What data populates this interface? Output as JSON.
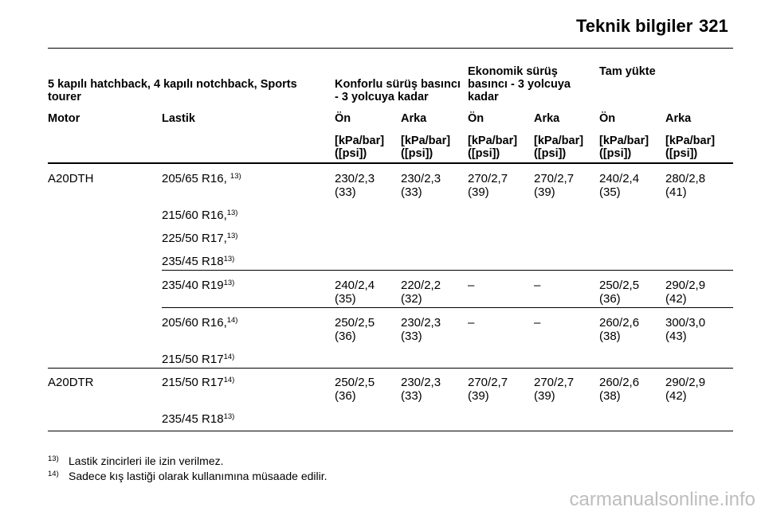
{
  "header": {
    "title": "Teknik bilgiler",
    "page_number": "321"
  },
  "table": {
    "group_header": "5 kapılı hatchback, 4 kapılı notchback, Sports tourer",
    "pressure_groups": [
      "Konforlu sürüş basıncı - 3 yolcuya kadar",
      "Ekonomik sürüş basıncı - 3 yolcuya kadar",
      "Tam yükte"
    ],
    "columns": [
      "Motor",
      "Lastik",
      "Ön",
      "Arka",
      "Ön",
      "Arka",
      "Ön",
      "Arka"
    ],
    "unit": "[kPa/bar] ([psi])",
    "rows": [
      {
        "engine": "A20DTH",
        "tires": [
          "205/65 R16,",
          "215/60 R16,",
          "225/50 R17,",
          "235/45 R18"
        ],
        "tire_notes": [
          "13)",
          "13)",
          "13)",
          "13)"
        ],
        "values": [
          "230/2,3 (33)",
          "230/2,3 (33)",
          "270/2,7 (39)",
          "270/2,7 (39)",
          "240/2,4 (35)",
          "280/2,8 (41)"
        ]
      },
      {
        "engine": "",
        "tires": [
          "235/40 R19"
        ],
        "tire_notes": [
          "13)"
        ],
        "values": [
          "240/2,4 (35)",
          "220/2,2 (32)",
          "–",
          "–",
          "250/2,5 (36)",
          "290/2,9 (42)"
        ]
      },
      {
        "engine": "",
        "tires": [
          "205/60 R16,",
          "215/50 R17"
        ],
        "tire_notes": [
          "14)",
          "14)"
        ],
        "values": [
          "250/2,5 (36)",
          "230/2,3 (33)",
          "–",
          "–",
          "260/2,6 (38)",
          "300/3,0 (43)"
        ]
      },
      {
        "engine": "A20DTR",
        "tires": [
          "215/50 R17",
          "235/45 R18"
        ],
        "tire_notes": [
          "14)",
          "13)"
        ],
        "values": [
          "250/2,5 (36)",
          "230/2,3 (33)",
          "270/2,7 (39)",
          "270/2,7 (39)",
          "260/2,6 (38)",
          "290/2,9 (42)"
        ]
      }
    ]
  },
  "footnotes": [
    {
      "num": "13)",
      "text": "Lastik zincirleri ile izin verilmez."
    },
    {
      "num": "14)",
      "text": "Sadece kış lastiği olarak kullanımına müsaade edilir."
    }
  ],
  "watermark": "carmanualsonline.info"
}
